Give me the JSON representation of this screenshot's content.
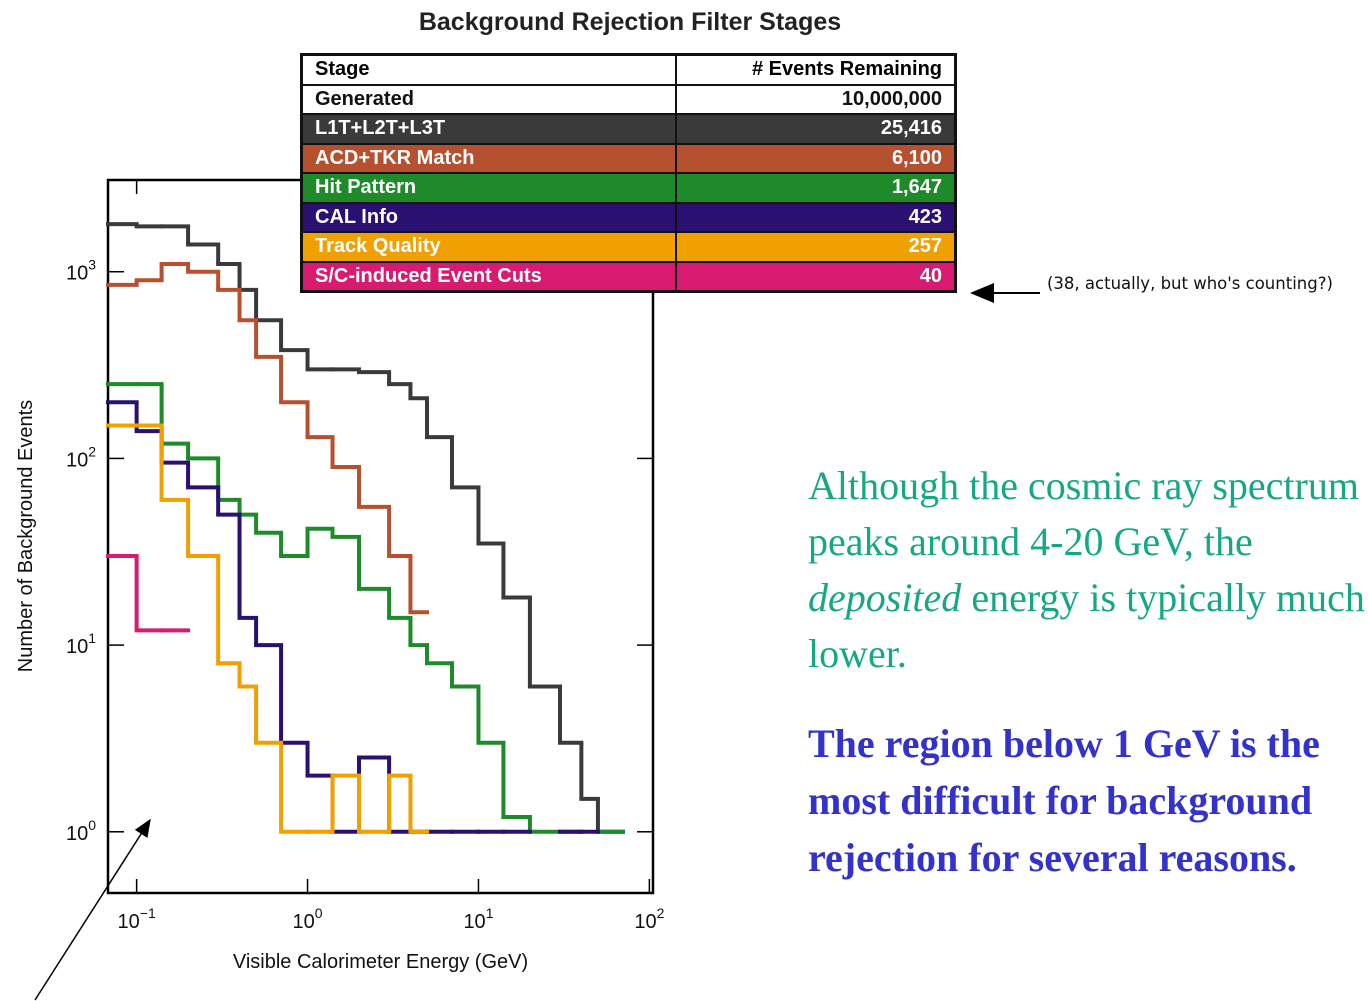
{
  "chart_data": {
    "type": "histogram",
    "xscale": "log",
    "yscale": "log",
    "x_label": "Visible Calorimeter Energy  (GeV)",
    "y_label": "Number of Background Events",
    "xlim": [
      0.068,
      105
    ],
    "ylim": [
      0.47,
      3100
    ],
    "xticks": [
      {
        "value": 0.1,
        "label": "10",
        "exponent": "−1"
      },
      {
        "value": 1,
        "label": "10",
        "exponent": "0"
      },
      {
        "value": 10,
        "label": "10",
        "exponent": "1"
      },
      {
        "value": 100,
        "label": "10",
        "exponent": "2"
      }
    ],
    "yticks": [
      {
        "value": 1,
        "label": "10",
        "exponent": "0"
      },
      {
        "value": 10,
        "label": "10",
        "exponent": "1"
      },
      {
        "value": 100,
        "label": "10",
        "exponent": "2"
      },
      {
        "value": 1000,
        "label": "10",
        "exponent": "3"
      }
    ],
    "bins": [
      0.068,
      0.1,
      0.14,
      0.2,
      0.3,
      0.4,
      0.5,
      0.7,
      1,
      1.4,
      2,
      3,
      4,
      5,
      7,
      10,
      14,
      20,
      30,
      40,
      50,
      70,
      100
    ],
    "series": [
      {
        "color": "#3a3a3a",
        "values": [
          1800,
          1750,
          1750,
          1400,
          1100,
          800,
          550,
          380,
          300,
          300,
          290,
          250,
          210,
          130,
          70,
          35,
          18,
          6,
          3,
          1.5,
          1,
          null
        ]
      },
      {
        "color": "#b5512f",
        "values": [
          850,
          900,
          1100,
          1000,
          800,
          550,
          350,
          200,
          130,
          90,
          55,
          30,
          15,
          null,
          null,
          null,
          null,
          null,
          null,
          null,
          null,
          null
        ]
      },
      {
        "color": "#1e8a2a",
        "values": [
          250,
          250,
          120,
          100,
          60,
          50,
          40,
          30,
          42,
          38,
          20,
          14,
          10,
          8,
          6,
          3,
          1.2,
          1,
          1,
          null,
          1,
          null
        ]
      },
      {
        "color": "#2a1070",
        "values": [
          200,
          140,
          95,
          70,
          50,
          14,
          10,
          3,
          2,
          1,
          2.5,
          1,
          1,
          1,
          1,
          1,
          1,
          null,
          1,
          1,
          null,
          null
        ]
      },
      {
        "color": "#f0a000",
        "values": [
          150,
          150,
          60,
          30,
          8,
          6,
          3,
          1,
          1,
          2,
          1,
          2,
          1,
          null,
          null,
          null,
          null,
          null,
          null,
          null,
          null,
          null
        ]
      },
      {
        "color": "#d81b70",
        "values": [
          30,
          12,
          12,
          null,
          null,
          null,
          null,
          null,
          null,
          null,
          null,
          null,
          null,
          null,
          null,
          null,
          null,
          null,
          null,
          null,
          null,
          null
        ]
      }
    ]
  },
  "table": {
    "title": "Background Rejection Filter Stages",
    "header": [
      "Stage",
      "# Events Remaining"
    ],
    "rows": [
      [
        "Generated",
        "10,000,000"
      ],
      [
        "L1T+L2T+L3T",
        "25,416"
      ],
      [
        "ACD+TKR Match",
        "6,100"
      ],
      [
        "Hit Pattern",
        "1,647"
      ],
      [
        "CAL Info",
        "423"
      ],
      [
        "Track Quality",
        "257"
      ],
      [
        "S/C-induced Event Cuts",
        "40"
      ]
    ],
    "row_colors": [
      "#ffffff",
      "#3a3a3a",
      "#b5512f",
      "#1e8a2a",
      "#2a1070",
      "#f0a000",
      "#d81b70"
    ]
  },
  "annotation": "(38, actually, but who's counting?)",
  "text": {
    "para1": [
      "Although the cosmic ray spectrum peaks around 4-20 GeV, the ",
      "deposited",
      " energy is typically much lower."
    ],
    "para2": "The region below 1 GeV is the most difficult for background rejection for several reasons."
  }
}
